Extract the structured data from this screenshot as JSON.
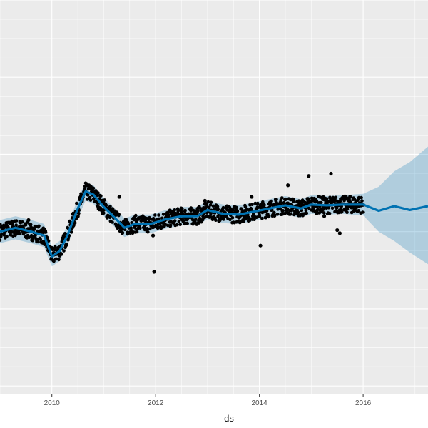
{
  "chart_data": {
    "type": "line",
    "title": "",
    "xlabel": "ds",
    "ylabel": "",
    "xlim": [
      2009.0,
      2017.25
    ],
    "ylim": [
      -2.1,
      3.0
    ],
    "grid": true,
    "x_ticks": [
      2010,
      2012,
      2014,
      2016
    ],
    "x_tick_labels": [
      "2010",
      "2012",
      "2014",
      "2016"
    ],
    "colors": {
      "panel": "#ebebeb",
      "grid": "#ffffff",
      "observed": "#000000",
      "forecast_line": "#0072b2",
      "uncertainty": "#0072b2"
    },
    "series": [
      {
        "role": "forecast",
        "x": [
          2009.0,
          2009.3,
          2009.6,
          2009.85,
          2010.0,
          2010.15,
          2010.3,
          2010.5,
          2010.65,
          2010.8,
          2011.0,
          2011.15,
          2011.4,
          2011.6,
          2011.9,
          2012.2,
          2012.5,
          2012.8,
          2013.0,
          2013.3,
          2013.6,
          2013.9,
          2014.2,
          2014.5,
          2014.8,
          2015.0,
          2015.3,
          2015.6,
          2016.0,
          2016.3,
          2016.6,
          2016.9,
          2017.25
        ],
        "y": [
          0.0,
          0.05,
          0.0,
          -0.05,
          -0.32,
          -0.25,
          -0.05,
          0.3,
          0.52,
          0.48,
          0.32,
          0.22,
          0.05,
          0.1,
          0.1,
          0.16,
          0.2,
          0.2,
          0.28,
          0.23,
          0.22,
          0.26,
          0.3,
          0.34,
          0.3,
          0.35,
          0.34,
          0.35,
          0.35,
          0.27,
          0.33,
          0.28,
          0.33
        ],
        "lower": [
          -0.15,
          -0.1,
          -0.15,
          -0.2,
          -0.45,
          -0.38,
          -0.18,
          0.18,
          0.4,
          0.36,
          0.2,
          0.1,
          -0.07,
          -0.02,
          -0.02,
          0.04,
          0.08,
          0.08,
          0.16,
          0.11,
          0.1,
          0.14,
          0.18,
          0.22,
          0.18,
          0.23,
          0.22,
          0.23,
          0.21,
          0.0,
          -0.12,
          -0.27,
          -0.42
        ],
        "upper": [
          0.15,
          0.2,
          0.15,
          0.1,
          -0.19,
          -0.12,
          0.08,
          0.42,
          0.64,
          0.6,
          0.44,
          0.34,
          0.17,
          0.22,
          0.22,
          0.28,
          0.32,
          0.32,
          0.4,
          0.35,
          0.34,
          0.38,
          0.42,
          0.46,
          0.42,
          0.47,
          0.46,
          0.47,
          0.49,
          0.58,
          0.78,
          0.9,
          1.1
        ]
      },
      {
        "role": "observed",
        "outliers": [
          {
            "x": 2009.55,
            "y": 0.15
          },
          {
            "x": 2009.6,
            "y": 0.05
          },
          {
            "x": 2011.3,
            "y": 0.45
          },
          {
            "x": 2011.95,
            "y": -0.05
          },
          {
            "x": 2011.97,
            "y": -0.52
          },
          {
            "x": 2012.95,
            "y": 0.4
          },
          {
            "x": 2013.85,
            "y": 0.45
          },
          {
            "x": 2014.02,
            "y": -0.18
          },
          {
            "x": 2014.55,
            "y": 0.6
          },
          {
            "x": 2014.95,
            "y": 0.72
          },
          {
            "x": 2015.25,
            "y": 0.2
          },
          {
            "x": 2015.38,
            "y": 0.75
          },
          {
            "x": 2015.5,
            "y": 0.02
          },
          {
            "x": 2015.55,
            "y": -0.02
          },
          {
            "x": 2015.75,
            "y": 0.45
          }
        ]
      }
    ]
  }
}
